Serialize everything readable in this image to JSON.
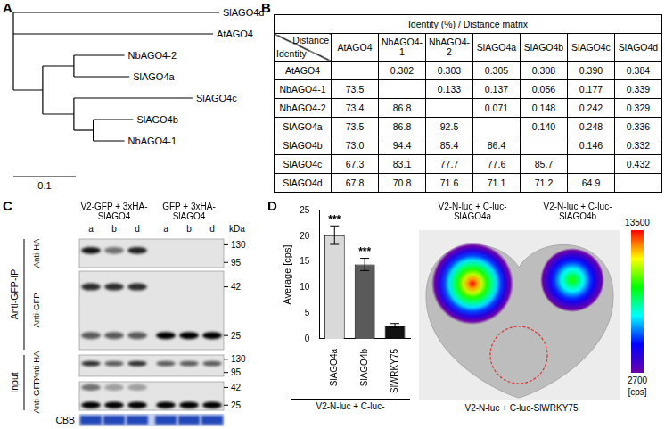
{
  "chart_data": {
    "type": "bar",
    "categories": [
      "SlAGO4a",
      "SlAGO4b",
      "SlWRKY75"
    ],
    "values": [
      20.2,
      14.5,
      2.6
    ],
    "errors": [
      1.8,
      1.2,
      0.4
    ],
    "colors": [
      "#d9d9d9",
      "#5a5a5a",
      "#111111"
    ],
    "ylim": [
      0,
      25
    ],
    "yticks": [
      0,
      5,
      10,
      15,
      20,
      25
    ],
    "y_label": "Average [cps]",
    "x_label": "V2-N-luc + C-luc-",
    "annotations": [
      {
        "category": "SlAGO4a",
        "text": "***"
      },
      {
        "category": "SlAGO4b",
        "text": "***"
      }
    ],
    "grid": false
  },
  "panels": {
    "A": {
      "label": "A",
      "tree": {
        "children": [
          {
            "name": "SlAGO4d",
            "length": 0.33
          },
          {
            "name": "AtAGO4",
            "length": 0.32
          },
          {
            "length": 0.047,
            "children": [
              {
                "length": 0.05,
                "children": [
                  {
                    "name": "NbAGO4-2",
                    "length": 0.081
                  },
                  {
                    "name": "SlAGO4a",
                    "length": 0.089
                  }
                ]
              },
              {
                "length": 0.05,
                "children": [
                  {
                    "name": "SlAGO4c",
                    "length": 0.19
                  },
                  {
                    "length": 0.031,
                    "children": [
                      {
                        "name": "SlAGO4b",
                        "length": 0.064
                      },
                      {
                        "name": "NbAGO4-1",
                        "length": 0.05
                      }
                    ]
                  }
                ]
              }
            ]
          }
        ]
      },
      "scale_bar": {
        "value": 0.1,
        "label": "0.1"
      }
    },
    "B": {
      "label": "B",
      "title": "Identity (%) / Distance matrix",
      "corner": {
        "top": "Distance",
        "bottom": "Identity"
      },
      "columns": [
        "AtAGO4",
        "NbAGO4-1",
        "NbAGO4-2",
        "SlAGO4a",
        "SlAGO4b",
        "SlAGO4c",
        "SlAGO4d"
      ],
      "rows": [
        {
          "name": "AtAGO4",
          "cells": [
            null,
            "0.302",
            "0.303",
            "0.305",
            "0.308",
            "0.390",
            "0.384"
          ]
        },
        {
          "name": "NbAGO4-1",
          "cells": [
            "73.5",
            null,
            "0.133",
            "0.137",
            "0.056",
            "0.177",
            "0.339"
          ]
        },
        {
          "name": "NbAGO4-2",
          "cells": [
            "73.4",
            "86.8",
            null,
            "0.071",
            "0.148",
            "0.242",
            "0.329"
          ]
        },
        {
          "name": "SlAGO4a",
          "cells": [
            "73.5",
            "86.8",
            "92.5",
            null,
            "0.140",
            "0.248",
            "0.336"
          ]
        },
        {
          "name": "SlAGO4b",
          "cells": [
            "73.0",
            "94.4",
            "85.4",
            "86.4",
            null,
            "0.146",
            "0.332"
          ]
        },
        {
          "name": "SlAGO4c",
          "cells": [
            "67.3",
            "83.1",
            "77.7",
            "77.6",
            "85.7",
            null,
            "0.432"
          ]
        },
        {
          "name": "SlAGO4d",
          "cells": [
            "67.8",
            "70.8",
            "71.6",
            "71.1",
            "71.2",
            "64.9",
            null
          ]
        }
      ]
    },
    "C": {
      "label": "C",
      "groups": [
        {
          "name": "V2-GFP + 3xHA-SlAGO4",
          "lanes": [
            "a",
            "b",
            "d"
          ]
        },
        {
          "name": "GFP + 3xHA-SlAGO4",
          "lanes": [
            "a",
            "b",
            "d"
          ]
        }
      ],
      "unit": "kDa",
      "sections": [
        {
          "name": "Anti-GFP-IP",
          "blots": [
            {
              "antibody": "Anti-HA",
              "markers": [
                130,
                95
              ],
              "bands": [
                [
                  0.9,
                  0.5,
                  0.85,
                  0,
                  0,
                  0
                ]
              ]
            },
            {
              "antibody": "Anti-GFP",
              "markers": [
                42,
                25
              ],
              "bands": [
                [
                  0.8,
                  0.8,
                  0.8,
                  0,
                  0,
                  0
                ],
                [
                  0.6,
                  0.6,
                  0.6,
                  1,
                  1,
                  1
                ]
              ]
            }
          ]
        },
        {
          "name": "Input",
          "blots": [
            {
              "antibody": "Anti-HA",
              "markers": [
                130,
                95
              ],
              "bands": [
                [
                  0.8,
                  0.6,
                  0.8,
                  0.6,
                  0.6,
                  0.6
                ]
              ]
            },
            {
              "antibody": "Anti-GFP",
              "markers": [
                42,
                25
              ],
              "bands": [
                [
                  0.5,
                  0.3,
                  0.3,
                  0,
                  0,
                  0
                ],
                [
                  1,
                  1,
                  1,
                  1,
                  1,
                  1
                ]
              ]
            }
          ]
        }
      ],
      "stain": {
        "name": "CBB",
        "signal": [
          1,
          1,
          1,
          1,
          1,
          1
        ]
      }
    },
    "D": {
      "label": "D",
      "spots": [
        {
          "label": "V2-N-luc + C-luc-SlAGO4a",
          "peak": 13500
        },
        {
          "label": "V2-N-luc + C-luc-SlAGO4b",
          "peak": 9500
        },
        {
          "label": "V2-N-luc + C-luc-SlWRKY75",
          "peak": 2700
        }
      ],
      "colorbar": {
        "range": [
          2700,
          13500
        ],
        "ticks": [
          2700,
          13500
        ],
        "label": "[cps]"
      }
    }
  }
}
